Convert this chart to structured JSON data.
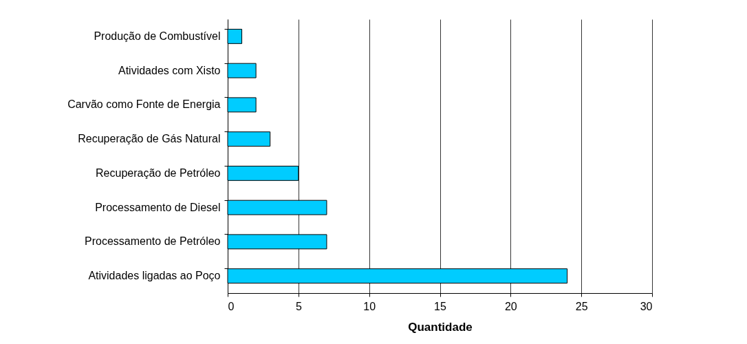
{
  "chart_data": {
    "type": "bar",
    "orientation": "horizontal",
    "xlabel": "Quantidade",
    "categories": [
      "Produção de Combustível",
      "Atividades com Xisto",
      "Carvão como Fonte de Energia",
      "Recuperação de Gás Natural",
      "Recuperação de Petróleo",
      "Processamento de Diesel",
      "Processamento de Petróleo",
      "Atividades ligadas ao Poço"
    ],
    "values": [
      1,
      2,
      2,
      3,
      5,
      7,
      7,
      24
    ],
    "color": "#00ccff",
    "xlim": [
      0,
      30
    ],
    "xticks": [
      0,
      5,
      10,
      15,
      20,
      25,
      30
    ],
    "grid": "x"
  }
}
